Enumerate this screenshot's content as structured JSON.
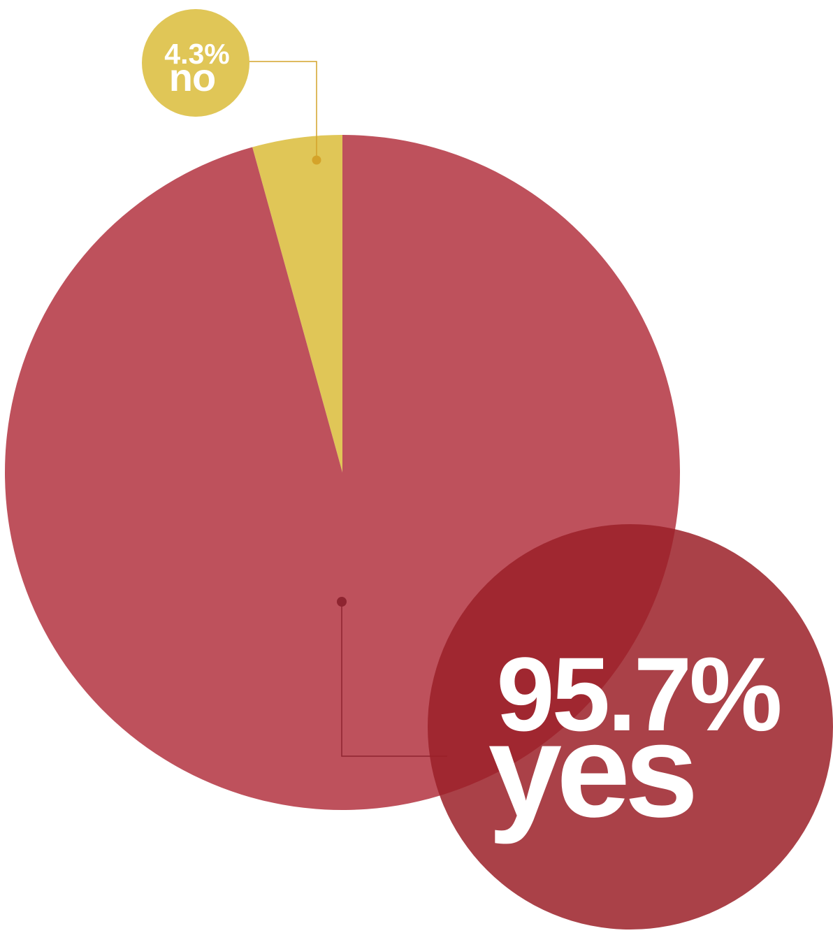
{
  "chart_data": {
    "type": "pie",
    "slices": [
      {
        "key": "no",
        "label": "no",
        "value": 4.3,
        "value_label": "4.3%",
        "color": "#E0C657",
        "marker_color": "#D4A32A",
        "bubble_color": "#E0C657"
      },
      {
        "key": "yes",
        "label": "yes",
        "value": 95.7,
        "value_label": "95.7%",
        "color": "#BE515C",
        "marker_color": "#8E2430",
        "bubble_color": "#9B2028"
      }
    ],
    "start_angle": "12 o'clock",
    "direction": "clockwise",
    "legend": "none (callout bubbles)"
  }
}
